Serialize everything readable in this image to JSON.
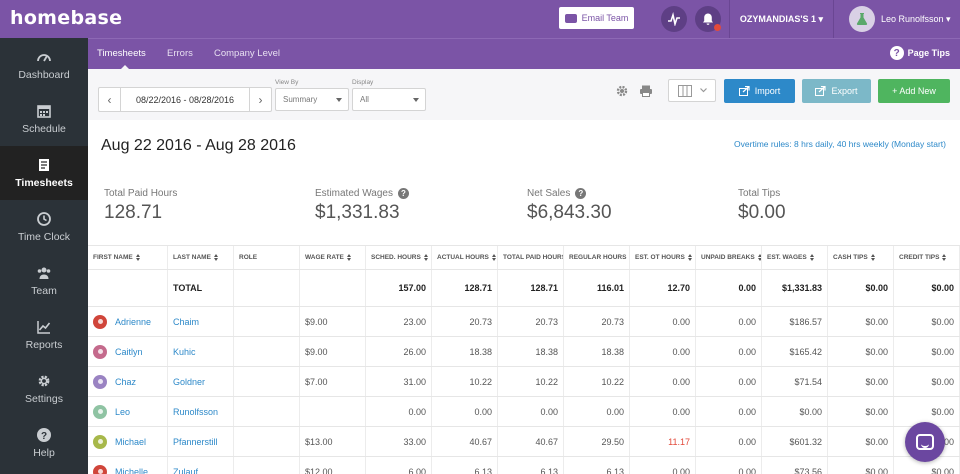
{
  "app": {
    "logo": "homebase"
  },
  "topbar": {
    "email_team": "Email Team",
    "location": "OZYMANDIAS'S 1 ▾",
    "user_name": "Leo Runolfsson ▾"
  },
  "subnav": {
    "tabs": [
      {
        "label": "Timesheets",
        "active": true
      },
      {
        "label": "Errors",
        "active": false
      },
      {
        "label": "Company Level",
        "active": false
      }
    ],
    "page_tips": "Page Tips"
  },
  "sidebar": {
    "items": [
      {
        "label": "Dashboard",
        "icon": "speedometer-icon",
        "active": false
      },
      {
        "label": "Schedule",
        "icon": "calendar-icon",
        "active": false
      },
      {
        "label": "Timesheets",
        "icon": "timesheet-icon",
        "active": true
      },
      {
        "label": "Time Clock",
        "icon": "clock-icon",
        "active": false
      },
      {
        "label": "Team",
        "icon": "team-icon",
        "active": false
      },
      {
        "label": "Reports",
        "icon": "chart-icon",
        "active": false
      },
      {
        "label": "Settings",
        "icon": "gear-icon",
        "active": false
      },
      {
        "label": "Help",
        "icon": "help-icon",
        "active": false
      }
    ]
  },
  "toolbar": {
    "date_range": "08/22/2016 - 08/28/2016",
    "view_by_label": "View By",
    "view_by_value": "Summary",
    "display_label": "Display",
    "display_value": "All",
    "import_label": "Import",
    "export_label": "Export",
    "add_new_label": "+ Add New"
  },
  "summary": {
    "week_title": "Aug 22 2016 - Aug 28 2016",
    "overtime_rules": "Overtime rules: 8 hrs daily, 40 hrs weekly (Monday start)",
    "stats": [
      {
        "label": "Total Paid Hours",
        "value": "128.71",
        "help": false
      },
      {
        "label": "Estimated Wages",
        "value": "$1,331.83",
        "help": true
      },
      {
        "label": "Net Sales",
        "value": "$6,843.30",
        "help": true
      },
      {
        "label": "Total Tips",
        "value": "$0.00",
        "help": false
      }
    ]
  },
  "table": {
    "headers": [
      "FIRST NAME",
      "LAST NAME",
      "ROLE",
      "WAGE RATE",
      "SCHED. HOURS",
      "ACTUAL HOURS",
      "TOTAL PAID HOURS",
      "REGULAR HOURS",
      "EST. OT HOURS",
      "UNPAID BREAKS",
      "EST. WAGES",
      "CASH TIPS",
      "CREDIT TIPS"
    ],
    "total": {
      "label": "TOTAL",
      "values": [
        "157.00",
        "128.71",
        "128.71",
        "116.01",
        "12.70",
        "0.00",
        "$1,331.83",
        "$0.00",
        "$0.00"
      ]
    },
    "rows": [
      {
        "first": "Adrienne",
        "last": "Chaim",
        "role": "",
        "wage": "$9.00",
        "values": [
          "23.00",
          "20.73",
          "20.73",
          "20.73",
          "0.00",
          "0.00",
          "$186.57",
          "$0.00",
          "$0.00"
        ],
        "avatar_color": "#d0453a",
        "ot_flag": false
      },
      {
        "first": "Caitlyn",
        "last": "Kuhic",
        "role": "",
        "wage": "$9.00",
        "values": [
          "26.00",
          "18.38",
          "18.38",
          "18.38",
          "0.00",
          "0.00",
          "$165.42",
          "$0.00",
          "$0.00"
        ],
        "avatar_color": "#c46a8c",
        "ot_flag": false
      },
      {
        "first": "Chaz",
        "last": "Goldner",
        "role": "",
        "wage": "$7.00",
        "values": [
          "31.00",
          "10.22",
          "10.22",
          "10.22",
          "0.00",
          "0.00",
          "$71.54",
          "$0.00",
          "$0.00"
        ],
        "avatar_color": "#9a83c2",
        "ot_flag": false
      },
      {
        "first": "Leo",
        "last": "Runolfsson",
        "role": "",
        "wage": "",
        "values": [
          "0.00",
          "0.00",
          "0.00",
          "0.00",
          "0.00",
          "0.00",
          "$0.00",
          "$0.00",
          "$0.00"
        ],
        "avatar_color": "#8fc3a3",
        "ot_flag": false
      },
      {
        "first": "Michael",
        "last": "Pfannerstill",
        "role": "",
        "wage": "$13.00",
        "values": [
          "33.00",
          "40.67",
          "40.67",
          "29.50",
          "11.17",
          "0.00",
          "$601.32",
          "$0.00",
          "$0.00"
        ],
        "avatar_color": "#a7b84a",
        "ot_flag": true
      },
      {
        "first": "Michelle",
        "last": "Zulauf",
        "role": "",
        "wage": "$12.00",
        "values": [
          "6.00",
          "6.13",
          "6.13",
          "6.13",
          "0.00",
          "0.00",
          "$73.56",
          "$0.00",
          "$0.00"
        ],
        "avatar_color": "#d0453a",
        "ot_flag": false
      }
    ]
  }
}
